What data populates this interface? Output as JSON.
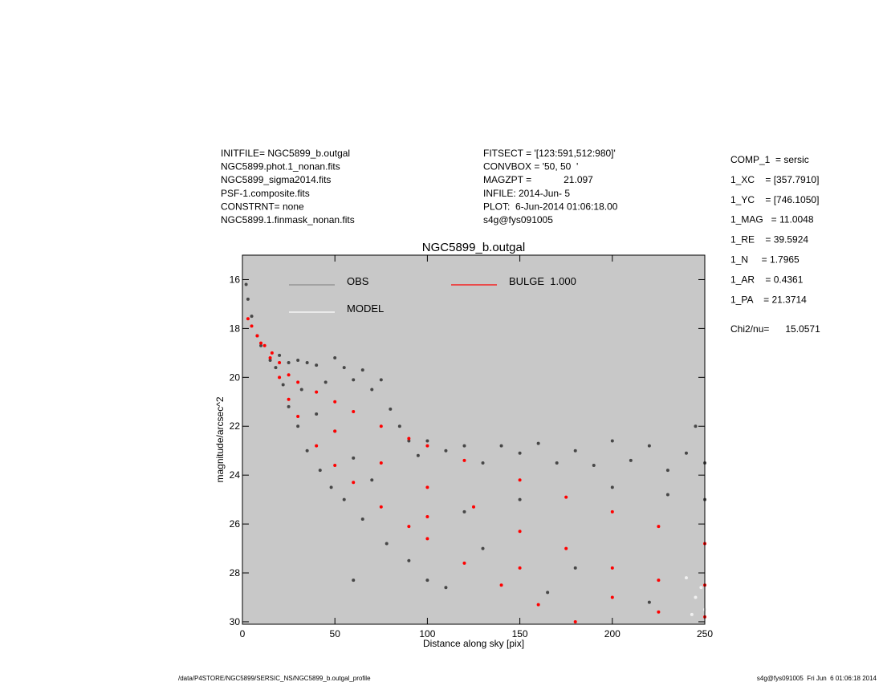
{
  "chart_data": {
    "type": "scatter",
    "title": "NGC5899_b.outgal",
    "x_label": "Distance along sky [pix]",
    "y_label": "magnitude/arcsec^2",
    "xlim": [
      0,
      250
    ],
    "xticks": [
      0,
      50,
      100,
      150,
      200,
      250
    ],
    "ylim": [
      30.1,
      15
    ],
    "yticks": [
      16,
      18,
      20,
      22,
      24,
      26,
      28,
      30
    ],
    "background": "#c8c8c8",
    "header_left": [
      "INITFILE= NGC5899_b.outgal",
      "NGC5899.phot.1_nonan.fits",
      "NGC5899_sigma2014.fits",
      "PSF-1.composite.fits",
      "CONSTRNT= none",
      "NGC5899.1.finmask_nonan.fits"
    ],
    "header_middle": [
      "FITSECT = '[123:591,512:980]'",
      "CONVBOX = '50, 50  '",
      "MAGZPT =            21.097",
      "INFILE: 2014-Jun- 5",
      "PLOT:  6-Jun-2014 01:06:18.00",
      "s4g@fys091005"
    ],
    "parameters": [
      "COMP_1  = sersic",
      "1_XC    = [357.7910]",
      "1_YC    = [746.1050]",
      "1_MAG   = 11.0048",
      "1_RE    = 39.5924",
      "1_N     = 1.7965",
      "1_AR    = 0.4361",
      "1_PA    = 21.3714"
    ],
    "chi2": "Chi2/nu=      15.0571",
    "footer_left": "/data/P4STORE/NGC5899/SERSIC_NS/NGC5899_b.outgal_profile",
    "footer_right": "s4g@fys091005  Fri Jun  6 01:06:18 2014",
    "series": [
      {
        "name": "OBS",
        "color": "#474747",
        "legend_color": "#8c8c8c",
        "x": [
          2,
          3,
          5,
          8,
          10,
          15,
          18,
          20,
          22,
          25,
          25,
          30,
          30,
          32,
          35,
          35,
          40,
          40,
          42,
          45,
          48,
          50,
          50,
          55,
          55,
          60,
          60,
          65,
          65,
          70,
          70,
          75,
          78,
          80,
          85,
          90,
          90,
          95,
          100,
          100,
          110,
          120,
          120,
          130,
          140,
          150,
          150,
          160,
          170,
          180,
          190,
          200,
          210,
          220,
          230,
          240,
          245,
          250,
          250,
          200,
          230,
          180,
          130,
          60,
          110,
          165,
          220
        ],
        "y": [
          16.2,
          16.8,
          17.5,
          18.3,
          18.7,
          19.3,
          19.6,
          19.1,
          20.3,
          19.4,
          21.2,
          19.3,
          22.0,
          20.5,
          19.4,
          23.0,
          19.5,
          21.5,
          23.8,
          20.2,
          24.5,
          19.2,
          22.2,
          19.6,
          25.0,
          20.1,
          23.3,
          19.7,
          25.8,
          20.5,
          24.2,
          20.1,
          26.8,
          21.3,
          22.0,
          22.6,
          27.5,
          23.2,
          22.6,
          28.3,
          23.0,
          22.8,
          25.5,
          23.5,
          22.8,
          23.1,
          25.0,
          22.7,
          23.5,
          23.0,
          23.6,
          22.6,
          23.4,
          22.8,
          23.8,
          23.1,
          22.0,
          23.5,
          25.0,
          24.5,
          24.8,
          27.8,
          27.0,
          28.3,
          28.6,
          28.8,
          29.2
        ]
      },
      {
        "name": "MODEL",
        "color": "#f0f0f0",
        "legend_color": "#ffffff",
        "x": [
          240,
          245,
          248,
          250,
          243
        ],
        "y": [
          28.2,
          29.0,
          28.6,
          29.5,
          29.7
        ]
      },
      {
        "name": "BULGE  1.000",
        "color": "#ff0000",
        "legend_color": "#ff0000",
        "x": [
          3,
          5,
          8,
          12,
          16,
          20,
          25,
          30,
          40,
          50,
          60,
          75,
          90,
          100,
          120,
          150,
          175,
          200,
          225,
          250,
          10,
          15,
          20,
          25,
          30,
          40,
          50,
          60,
          75,
          90,
          100,
          120,
          140,
          160,
          180,
          50,
          75,
          100,
          125,
          150,
          175,
          200,
          225,
          250,
          250,
          225,
          200,
          150,
          100
        ],
        "y": [
          17.6,
          17.9,
          18.3,
          18.7,
          19.0,
          19.4,
          19.9,
          20.2,
          20.6,
          21.0,
          21.4,
          22.0,
          22.5,
          22.8,
          23.4,
          24.2,
          24.9,
          25.5,
          26.1,
          26.8,
          18.6,
          19.2,
          20.0,
          20.9,
          21.6,
          22.8,
          23.6,
          24.3,
          25.3,
          26.1,
          26.6,
          27.6,
          28.5,
          29.3,
          30.0,
          22.2,
          23.5,
          24.5,
          25.3,
          26.3,
          27.0,
          27.8,
          28.3,
          28.5,
          29.8,
          29.6,
          29.0,
          27.8,
          25.7
        ]
      }
    ]
  }
}
